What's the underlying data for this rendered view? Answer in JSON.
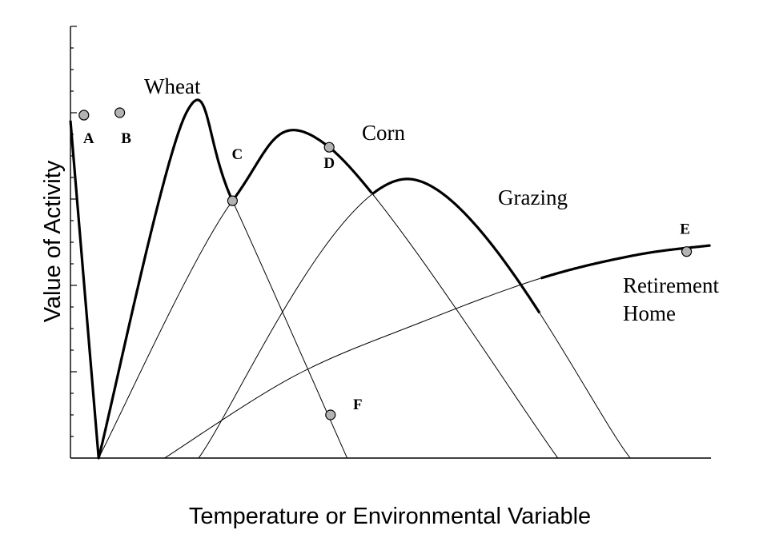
{
  "chart_data": {
    "type": "line",
    "title": "",
    "xlabel": "Temperature or Environmental Variable",
    "ylabel": "Value of Activity",
    "xlim": [
      0,
      100
    ],
    "ylim": [
      0,
      100
    ],
    "y_tick_count": 20,
    "major_tick_every": 4,
    "grid": false,
    "series": [
      {
        "name": "Wheat",
        "x": [
          4.4,
          18.1,
          25.3,
          43.2
        ],
        "y": [
          0,
          100,
          74.5,
          0
        ]
      },
      {
        "name": "Corn",
        "x": [
          4.4,
          25.3,
          40.4,
          76.1
        ],
        "y": [
          0,
          74.5,
          90,
          0
        ]
      },
      {
        "name": "Grazing",
        "x": [
          20,
          52.6,
          87.4
        ],
        "y": [
          0,
          80.8,
          0
        ]
      },
      {
        "name": "Retirement Home",
        "x": [
          14.7,
          35,
          55,
          73.3,
          88.3,
          100
        ],
        "y": [
          0,
          23.8,
          39.5,
          52,
          58.8,
          61.6
        ]
      }
    ],
    "upper_envelope": {
      "x": [
        0,
        25.3,
        47.1,
        73.3,
        100
      ],
      "y": [
        97.7,
        74.5,
        80.8,
        52,
        61.6
      ]
    },
    "points": [
      {
        "label": "A",
        "x": 2.1,
        "y": 99.3,
        "on": "Wheat"
      },
      {
        "label": "B",
        "x": 7.7,
        "y": 100,
        "on": "Wheat"
      },
      {
        "label": "C",
        "x": 25.3,
        "y": 74.5,
        "on": "Wheat"
      },
      {
        "label": "D",
        "x": 40.4,
        "y": 90,
        "on": "Corn"
      },
      {
        "label": "E",
        "x": 96.2,
        "y": 59.8,
        "on": "Retirement Home"
      },
      {
        "label": "F",
        "x": 40.6,
        "y": 12.5,
        "on": "Wheat"
      }
    ],
    "curve_labels": [
      {
        "text": "Wheat"
      },
      {
        "text": "Corn"
      },
      {
        "text": "Grazing"
      },
      {
        "text": "Retirement",
        "line2": "Home"
      }
    ],
    "colors": {
      "axis": "#000000",
      "curve": "#000000",
      "point_fill": "#b3b3b3"
    }
  }
}
